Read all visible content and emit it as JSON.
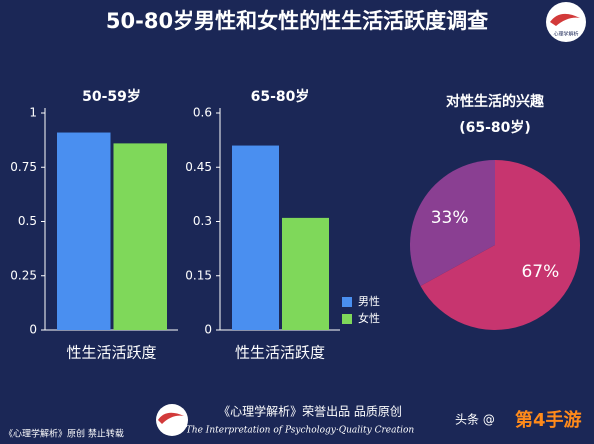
{
  "title": "50-80岁男性和女性的性生活活跃度调查",
  "logo": {
    "text": "心理学解析"
  },
  "chart_data": [
    {
      "type": "bar",
      "title": "50-59岁",
      "categories": [
        "性生活活跃度"
      ],
      "series": [
        {
          "name": "男性",
          "color": "#4a8ff0",
          "values": [
            0.91
          ]
        },
        {
          "name": "女性",
          "color": "#7fd85a",
          "values": [
            0.86
          ]
        }
      ],
      "ylim": [
        0,
        1
      ],
      "yticks": [
        0,
        0.25,
        0.5,
        0.75,
        1
      ]
    },
    {
      "type": "bar",
      "title": "65-80岁",
      "categories": [
        "性生活活跃度"
      ],
      "series": [
        {
          "name": "男性",
          "color": "#4a8ff0",
          "values": [
            0.51
          ]
        },
        {
          "name": "女性",
          "color": "#7fd85a",
          "values": [
            0.31
          ]
        }
      ],
      "ylim": [
        0,
        0.6
      ],
      "yticks": [
        0,
        0.15,
        0.3,
        0.45,
        0.6
      ],
      "legend": "lower right"
    },
    {
      "type": "pie",
      "title": "对性生活的兴趣",
      "subtitle": "(65-80岁)",
      "values": [
        33,
        67
      ],
      "value_labels": [
        "33%",
        "67%"
      ],
      "colors": [
        "#8a3f92",
        "#c7356f"
      ]
    }
  ],
  "footer": {
    "left": "《心理学解析》原创 禁止转载",
    "center": "《心理学解析》荣誉出品 品质原创",
    "tagline": "The Interpretation of Psychology·Quality Creation",
    "source": "头条 @",
    "watermark": "第4手游"
  }
}
